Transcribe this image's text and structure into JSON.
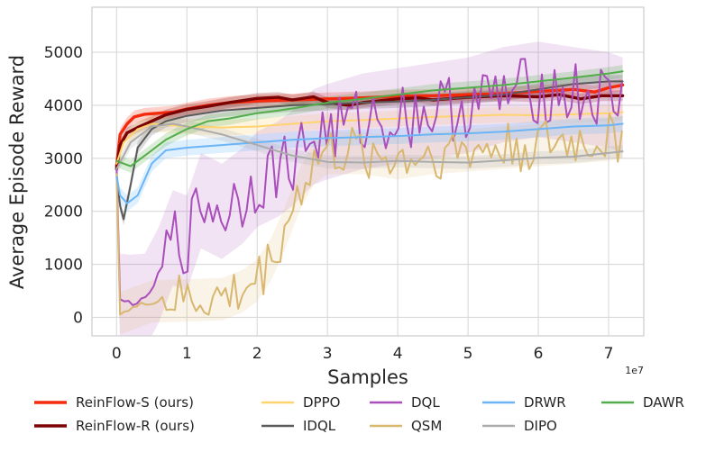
{
  "chart_data": {
    "type": "line",
    "xlabel": "Samples",
    "ylabel": "Average Episode Reward",
    "x_offset_label": "1e7",
    "xlim": [
      -0.35,
      7.5
    ],
    "ylim": [
      -350,
      5850
    ],
    "x_ticks": [
      0,
      1,
      2,
      3,
      4,
      5,
      6,
      7
    ],
    "y_ticks": [
      0,
      1000,
      2000,
      3000,
      4000,
      5000
    ],
    "grid": true,
    "legend_placement": "below",
    "series": [
      {
        "name": "ReinFlow-S (ours)",
        "color": "#f42a0c",
        "width": 3.4,
        "band": 120,
        "points": [
          [
            0,
            2850
          ],
          [
            0.05,
            3450
          ],
          [
            0.15,
            3650
          ],
          [
            0.25,
            3780
          ],
          [
            0.4,
            3830
          ],
          [
            0.6,
            3850
          ],
          [
            0.8,
            3870
          ],
          [
            1,
            3930
          ],
          [
            1.3,
            4000
          ],
          [
            1.6,
            4050
          ],
          [
            2,
            4080
          ],
          [
            2.5,
            4100
          ],
          [
            3,
            4120
          ],
          [
            3.5,
            4140
          ],
          [
            4,
            4170
          ],
          [
            4.5,
            4180
          ],
          [
            5,
            4200
          ],
          [
            5.5,
            4220
          ],
          [
            6,
            4260
          ],
          [
            6.5,
            4300
          ],
          [
            6.8,
            4250
          ],
          [
            7,
            4330
          ],
          [
            7.2,
            4380
          ]
        ]
      },
      {
        "name": "ReinFlow-R (ours)",
        "color": "#7b0303",
        "width": 3.4,
        "band": 100,
        "points": [
          [
            0,
            2800
          ],
          [
            0.05,
            3250
          ],
          [
            0.15,
            3480
          ],
          [
            0.3,
            3580
          ],
          [
            0.5,
            3700
          ],
          [
            0.7,
            3820
          ],
          [
            1,
            3920
          ],
          [
            1.3,
            3980
          ],
          [
            1.6,
            4050
          ],
          [
            2,
            4130
          ],
          [
            2.3,
            4150
          ],
          [
            2.5,
            4100
          ],
          [
            2.8,
            4160
          ],
          [
            3,
            4050
          ],
          [
            3.3,
            4000
          ],
          [
            3.5,
            4050
          ],
          [
            4,
            4120
          ],
          [
            4.3,
            4140
          ],
          [
            4.5,
            4100
          ],
          [
            5,
            4150
          ],
          [
            5.5,
            4180
          ],
          [
            6,
            4160
          ],
          [
            6.3,
            4200
          ],
          [
            6.6,
            4120
          ],
          [
            6.9,
            4180
          ],
          [
            7.2,
            4180
          ]
        ]
      },
      {
        "name": "DPPO",
        "color": "#ffd36e",
        "width": 2,
        "band": 150,
        "points": [
          [
            0,
            2900
          ],
          [
            0.1,
            3300
          ],
          [
            0.3,
            3550
          ],
          [
            0.5,
            3650
          ],
          [
            0.8,
            3620
          ],
          [
            1,
            3600
          ],
          [
            1.5,
            3580
          ],
          [
            2,
            3600
          ],
          [
            2.5,
            3650
          ],
          [
            3,
            3700
          ],
          [
            3.5,
            3720
          ],
          [
            4,
            3750
          ],
          [
            4.5,
            3780
          ],
          [
            5,
            3800
          ],
          [
            5.5,
            3820
          ],
          [
            6,
            3810
          ],
          [
            6.5,
            3830
          ],
          [
            7,
            3850
          ],
          [
            7.2,
            3870
          ]
        ]
      },
      {
        "name": "IDQL",
        "color": "#5a5a5a",
        "width": 2,
        "band": 120,
        "points": [
          [
            0,
            2700
          ],
          [
            0.05,
            2100
          ],
          [
            0.1,
            1850
          ],
          [
            0.2,
            2500
          ],
          [
            0.3,
            3200
          ],
          [
            0.5,
            3550
          ],
          [
            0.7,
            3700
          ],
          [
            1,
            3800
          ],
          [
            1.5,
            3900
          ],
          [
            2,
            3950
          ],
          [
            2.5,
            4000
          ],
          [
            3,
            4020
          ],
          [
            3.5,
            4050
          ],
          [
            4,
            4070
          ],
          [
            4.5,
            4100
          ],
          [
            5,
            4150
          ],
          [
            5.5,
            4200
          ],
          [
            6,
            4300
          ],
          [
            6.5,
            4400
          ],
          [
            7,
            4450
          ],
          [
            7.2,
            4450
          ]
        ]
      },
      {
        "name": "DQL",
        "color": "#a94eba",
        "width": 2,
        "band": 900,
        "noisy": true,
        "points": [
          [
            0,
            2800
          ],
          [
            0.05,
            300
          ],
          [
            0.2,
            280
          ],
          [
            0.4,
            300
          ],
          [
            0.6,
            800
          ],
          [
            0.8,
            1500
          ],
          [
            1,
            1400
          ],
          [
            1.2,
            2200
          ],
          [
            1.5,
            2000
          ],
          [
            1.8,
            2300
          ],
          [
            2,
            2600
          ],
          [
            2.3,
            2800
          ],
          [
            2.5,
            3000
          ],
          [
            2.8,
            3400
          ],
          [
            3,
            3500
          ],
          [
            3.5,
            3700
          ],
          [
            4,
            3800
          ],
          [
            4.5,
            3900
          ],
          [
            5,
            4000
          ],
          [
            5.5,
            4200
          ],
          [
            6,
            4300
          ],
          [
            6.5,
            4200
          ],
          [
            7,
            4100
          ],
          [
            7.2,
            4000
          ]
        ]
      },
      {
        "name": "QSM",
        "color": "#d8b76f",
        "width": 2,
        "band": 400,
        "noisy": true,
        "points": [
          [
            0,
            2700
          ],
          [
            0.05,
            80
          ],
          [
            0.2,
            150
          ],
          [
            0.5,
            300
          ],
          [
            1,
            320
          ],
          [
            1.5,
            340
          ],
          [
            1.8,
            500
          ],
          [
            2,
            700
          ],
          [
            2.2,
            1100
          ],
          [
            2.4,
            1700
          ],
          [
            2.6,
            2400
          ],
          [
            2.8,
            2900
          ],
          [
            3,
            3100
          ],
          [
            3.5,
            3100
          ],
          [
            4,
            3000
          ],
          [
            4.5,
            3100
          ],
          [
            5,
            3150
          ],
          [
            5.5,
            3200
          ],
          [
            6,
            3250
          ],
          [
            6.5,
            3300
          ],
          [
            7,
            3350
          ],
          [
            7.2,
            3400
          ]
        ]
      },
      {
        "name": "DRWR",
        "color": "#6bb5f7",
        "width": 2,
        "band": 150,
        "points": [
          [
            0,
            2650
          ],
          [
            0.05,
            2300
          ],
          [
            0.15,
            2150
          ],
          [
            0.3,
            2300
          ],
          [
            0.5,
            2900
          ],
          [
            0.7,
            3150
          ],
          [
            1,
            3200
          ],
          [
            1.5,
            3250
          ],
          [
            2,
            3300
          ],
          [
            2.5,
            3350
          ],
          [
            3,
            3380
          ],
          [
            3.5,
            3400
          ],
          [
            4,
            3420
          ],
          [
            4.5,
            3450
          ],
          [
            5,
            3470
          ],
          [
            5.5,
            3500
          ],
          [
            6,
            3550
          ],
          [
            6.5,
            3600
          ],
          [
            7,
            3620
          ],
          [
            7.2,
            3650
          ]
        ]
      },
      {
        "name": "DIPO",
        "color": "#ababab",
        "width": 2,
        "band": 120,
        "points": [
          [
            0,
            2800
          ],
          [
            0.2,
            3300
          ],
          [
            0.5,
            3600
          ],
          [
            0.8,
            3650
          ],
          [
            1,
            3600
          ],
          [
            1.5,
            3450
          ],
          [
            2,
            3250
          ],
          [
            2.5,
            3050
          ],
          [
            3,
            2930
          ],
          [
            3.5,
            2920
          ],
          [
            4,
            2950
          ],
          [
            4.5,
            2930
          ],
          [
            5,
            2920
          ],
          [
            5.5,
            2960
          ],
          [
            6,
            3010
          ],
          [
            6.5,
            3030
          ],
          [
            7,
            3100
          ],
          [
            7.2,
            3130
          ]
        ]
      },
      {
        "name": "DAWR",
        "color": "#53ad4b",
        "width": 2,
        "band": 120,
        "points": [
          [
            0,
            2950
          ],
          [
            0.1,
            2900
          ],
          [
            0.2,
            2850
          ],
          [
            0.35,
            3000
          ],
          [
            0.5,
            3150
          ],
          [
            0.7,
            3350
          ],
          [
            1,
            3550
          ],
          [
            1.3,
            3700
          ],
          [
            1.6,
            3750
          ],
          [
            2,
            3850
          ],
          [
            2.3,
            3900
          ],
          [
            2.6,
            3960
          ],
          [
            3,
            4050
          ],
          [
            3.5,
            4120
          ],
          [
            4,
            4200
          ],
          [
            4.5,
            4280
          ],
          [
            5,
            4330
          ],
          [
            5.5,
            4380
          ],
          [
            6,
            4450
          ],
          [
            6.5,
            4520
          ],
          [
            7,
            4600
          ],
          [
            7.2,
            4640
          ]
        ]
      }
    ]
  }
}
